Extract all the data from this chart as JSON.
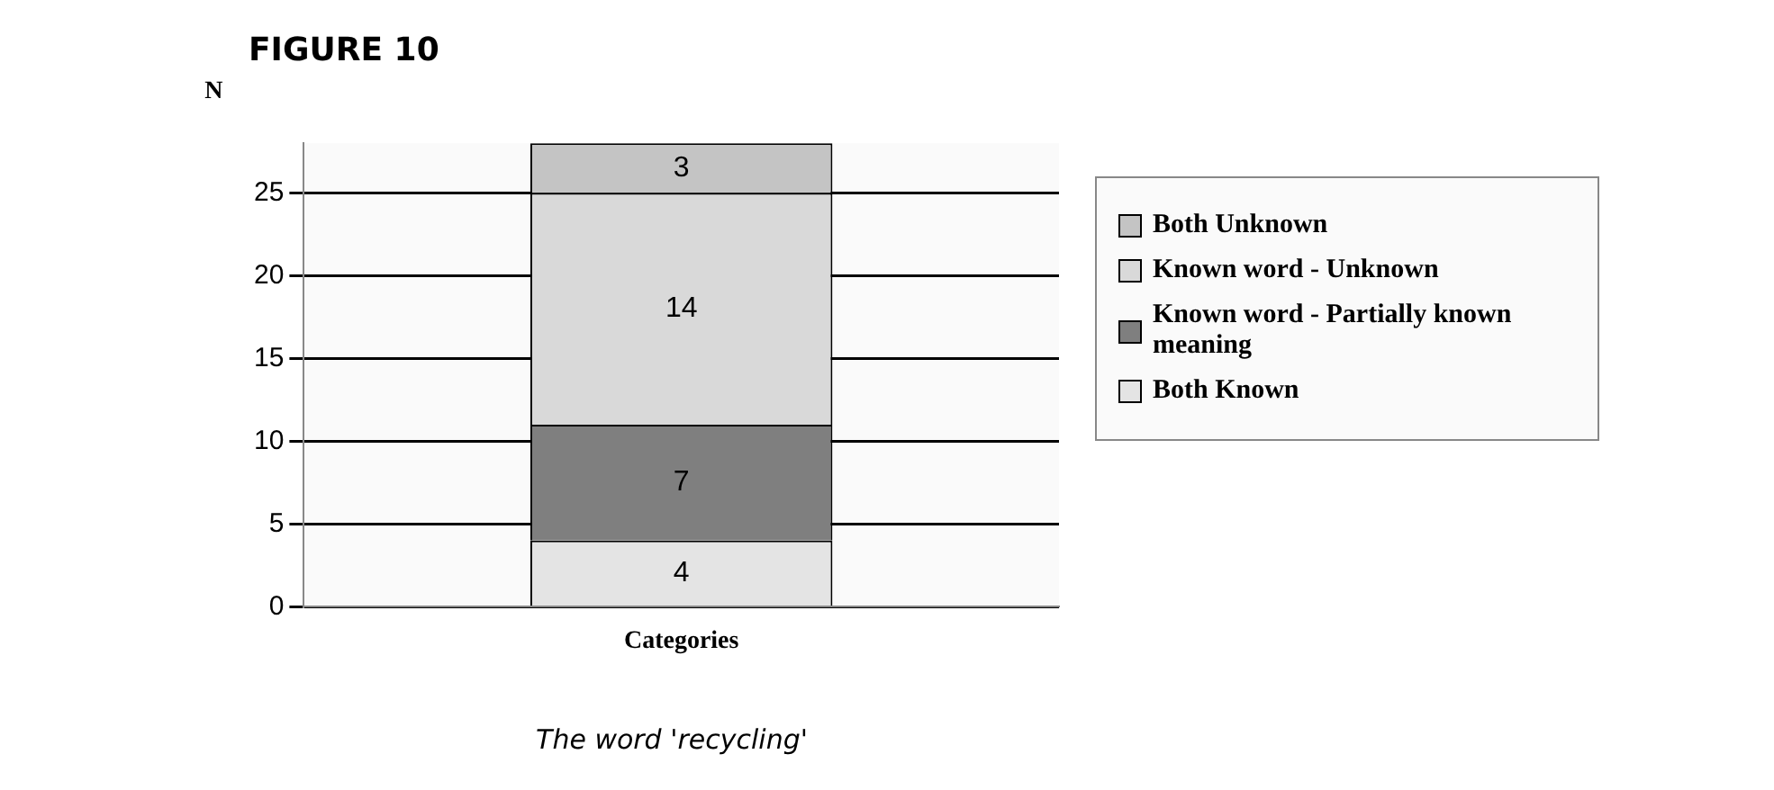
{
  "chart_data": {
    "type": "bar",
    "title": "FIGURE 10",
    "ylabel": "N",
    "annotations": [
      "The word 'recycling'"
    ],
    "categories": [
      "Categories"
    ],
    "stacked": true,
    "data_labels": true,
    "grid": "y",
    "legend": "right",
    "ylim": [
      0,
      28
    ],
    "yticks": [
      0,
      5,
      10,
      15,
      20,
      25
    ],
    "series": [
      {
        "name": "Both Known",
        "color": "#e4e4e4",
        "values": [
          4
        ]
      },
      {
        "name": "Known word - Partially known meaning",
        "color": "#7f7f7f",
        "values": [
          7
        ]
      },
      {
        "name": "Known word - Unknown",
        "color": "#d9d9d9",
        "values": [
          14
        ]
      },
      {
        "name": "Both Unknown",
        "color": "#c4c4c4",
        "values": [
          3
        ]
      }
    ]
  }
}
